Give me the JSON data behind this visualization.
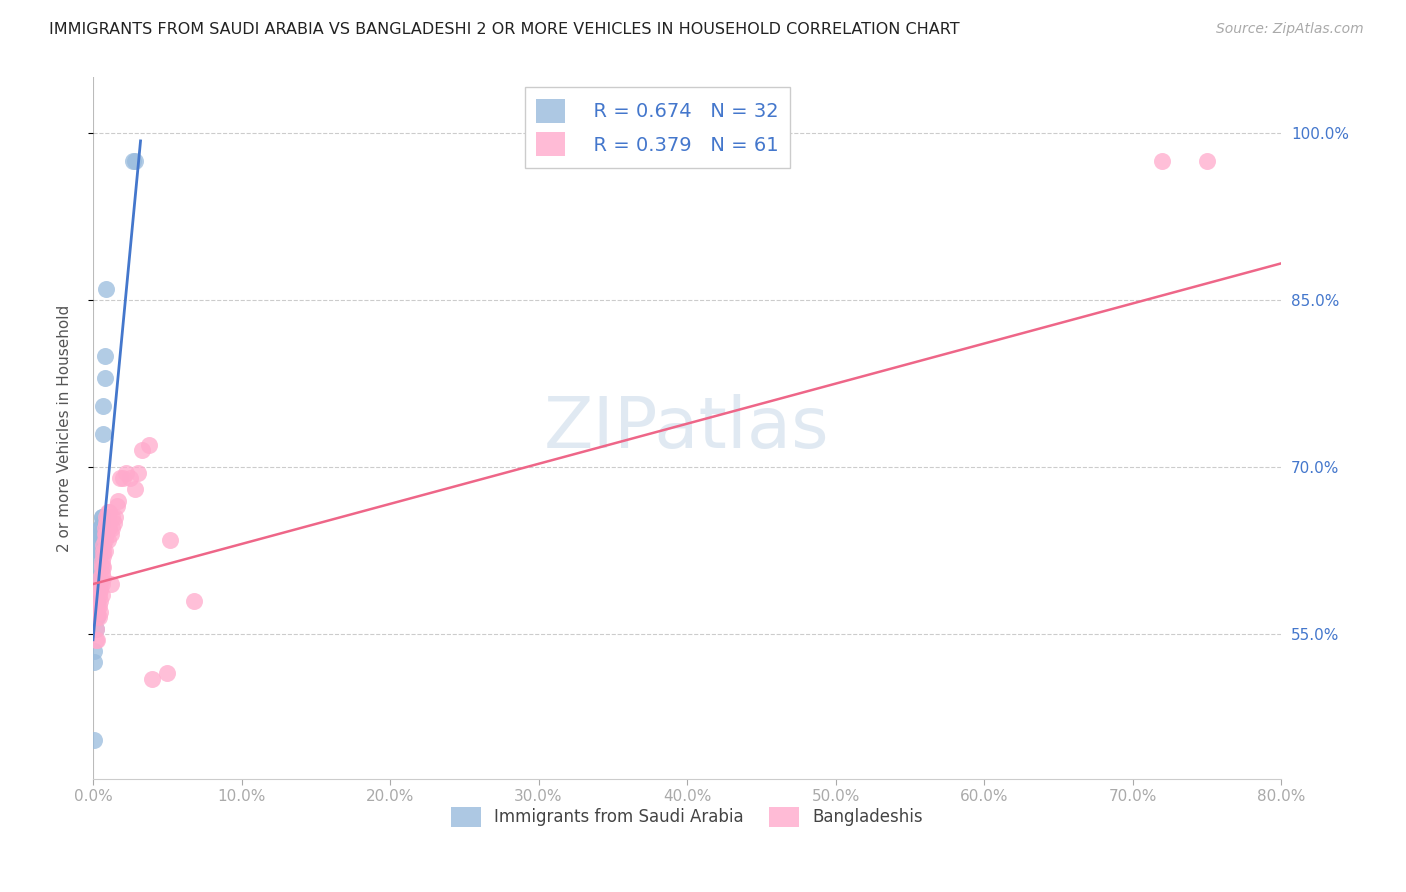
{
  "title": "IMMIGRANTS FROM SAUDI ARABIA VS BANGLADESHI 2 OR MORE VEHICLES IN HOUSEHOLD CORRELATION CHART",
  "source": "Source: ZipAtlas.com",
  "ylabel": "2 or more Vehicles in Household",
  "yaxis_ticks": [
    "55.0%",
    "70.0%",
    "85.0%",
    "100.0%"
  ],
  "legend_r1": "R = 0.674",
  "legend_n1": "N = 32",
  "legend_r2": "R = 0.379",
  "legend_n2": "N = 61",
  "legend_label1": "Immigrants from Saudi Arabia",
  "legend_label2": "Bangladeshis",
  "color_blue": "#99bbdd",
  "color_pink": "#ffaacc",
  "color_blue_line": "#4477cc",
  "color_pink_line": "#ee6688",
  "color_text_blue": "#4477cc",
  "xlim": [
    0.0,
    0.8
  ],
  "ylim": [
    0.42,
    1.05
  ],
  "saudi_x": [
    0.0005,
    0.001,
    0.001,
    0.002,
    0.002,
    0.002,
    0.002,
    0.003,
    0.003,
    0.003,
    0.003,
    0.003,
    0.004,
    0.004,
    0.004,
    0.004,
    0.004,
    0.005,
    0.005,
    0.005,
    0.005,
    0.006,
    0.006,
    0.006,
    0.006,
    0.007,
    0.007,
    0.008,
    0.008,
    0.009,
    0.027,
    0.028
  ],
  "saudi_y": [
    0.455,
    0.535,
    0.525,
    0.555,
    0.565,
    0.565,
    0.58,
    0.61,
    0.6,
    0.59,
    0.58,
    0.565,
    0.62,
    0.625,
    0.625,
    0.63,
    0.635,
    0.645,
    0.645,
    0.64,
    0.635,
    0.655,
    0.655,
    0.65,
    0.64,
    0.73,
    0.755,
    0.8,
    0.78,
    0.86,
    0.975,
    0.975
  ],
  "bangla_x": [
    0.001,
    0.002,
    0.002,
    0.003,
    0.003,
    0.003,
    0.003,
    0.004,
    0.004,
    0.004,
    0.004,
    0.005,
    0.005,
    0.005,
    0.005,
    0.005,
    0.006,
    0.006,
    0.006,
    0.006,
    0.006,
    0.007,
    0.007,
    0.007,
    0.007,
    0.007,
    0.008,
    0.008,
    0.008,
    0.008,
    0.009,
    0.009,
    0.009,
    0.01,
    0.01,
    0.01,
    0.01,
    0.011,
    0.011,
    0.012,
    0.012,
    0.013,
    0.013,
    0.014,
    0.015,
    0.016,
    0.017,
    0.018,
    0.02,
    0.022,
    0.025,
    0.028,
    0.03,
    0.033,
    0.038,
    0.04,
    0.05,
    0.052,
    0.068,
    0.72,
    0.75
  ],
  "bangla_y": [
    0.57,
    0.555,
    0.545,
    0.575,
    0.57,
    0.565,
    0.545,
    0.59,
    0.585,
    0.575,
    0.565,
    0.6,
    0.595,
    0.59,
    0.58,
    0.57,
    0.615,
    0.61,
    0.605,
    0.595,
    0.585,
    0.63,
    0.625,
    0.62,
    0.61,
    0.6,
    0.645,
    0.64,
    0.635,
    0.625,
    0.655,
    0.65,
    0.64,
    0.66,
    0.655,
    0.645,
    0.635,
    0.66,
    0.645,
    0.64,
    0.595,
    0.655,
    0.645,
    0.65,
    0.655,
    0.665,
    0.67,
    0.69,
    0.69,
    0.695,
    0.69,
    0.68,
    0.695,
    0.715,
    0.72,
    0.51,
    0.515,
    0.635,
    0.58,
    0.975,
    0.975
  ],
  "blue_trendline_x": [
    0.0,
    0.032
  ],
  "pink_trendline_x": [
    0.0,
    0.8
  ],
  "blue_intercept": 0.545,
  "blue_slope": 14.0,
  "pink_intercept": 0.595,
  "pink_slope": 0.36
}
